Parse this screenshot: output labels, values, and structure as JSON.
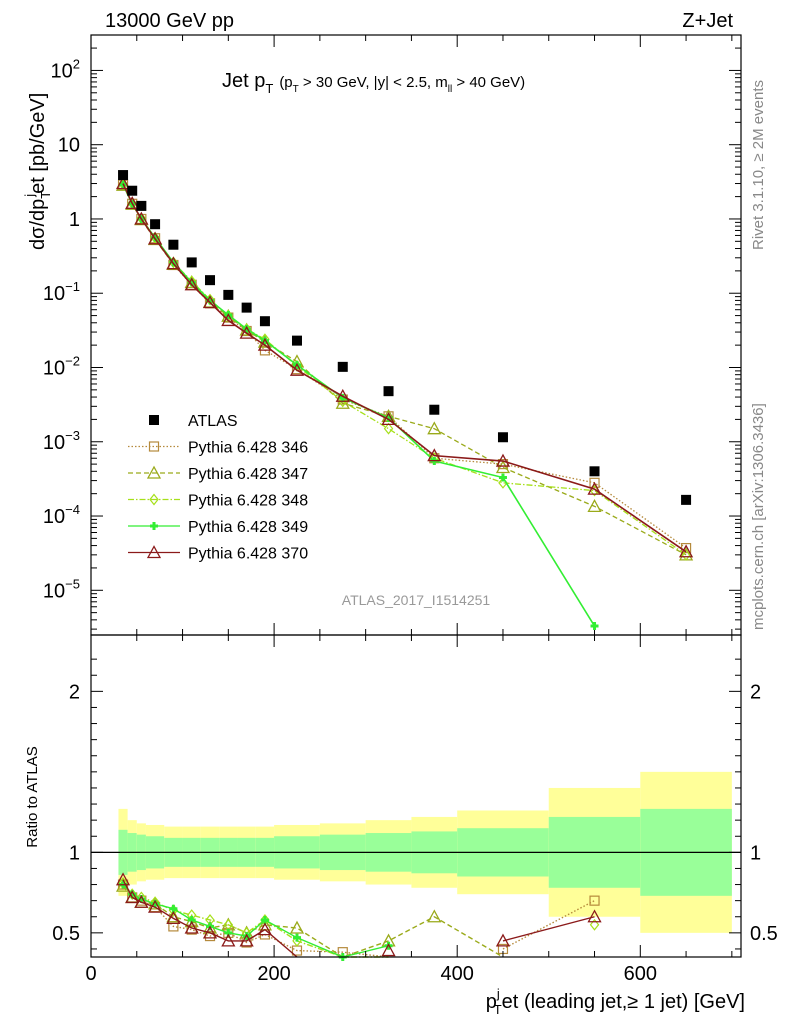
{
  "header": {
    "left": "13000 GeV pp",
    "right": "Z+Jet"
  },
  "side_labels": {
    "top": "Rivet 3.1.10, ≥ 2M events",
    "bottom": "mcplots.cern.ch [arXiv:1306.3436]"
  },
  "chart_data": [
    {
      "type": "scatter",
      "panel": "main",
      "title_main": "Jet p",
      "title_sub": "T",
      "title_cuts_a": "(p",
      "title_cuts_b": " > 30 GeV, |y| < 2.5, m",
      "title_cuts_sub2": "ll",
      "title_cuts_c": " > 40 GeV)",
      "ylabel": "dσ/dp",
      "ylabel_sub": "T",
      "ylabel_sup": "j",
      "ylabel_rest": "et [pb/GeV]",
      "watermark": "ATLAS_2017_I1514251",
      "y_scale": "log",
      "ylim": [
        2.5e-06,
        300
      ],
      "xlim": [
        0,
        710
      ],
      "y_ticks": [
        {
          "v": 1e-05,
          "m": "10",
          "e": "−5"
        },
        {
          "v": 0.0001,
          "m": "10",
          "e": "−4"
        },
        {
          "v": 0.001,
          "m": "10",
          "e": "−3"
        },
        {
          "v": 0.01,
          "m": "10",
          "e": "−2"
        },
        {
          "v": 0.1,
          "m": "10",
          "e": "−1"
        },
        {
          "v": 1,
          "m": "1",
          "e": ""
        },
        {
          "v": 10,
          "m": "10",
          "e": ""
        },
        {
          "v": 100,
          "m": "10",
          "e": "2"
        }
      ],
      "x": [
        35,
        45,
        55,
        70,
        90,
        110,
        130,
        150,
        170,
        190,
        225,
        275,
        325,
        375,
        450,
        550,
        650
      ],
      "series": [
        {
          "name": "ATLAS",
          "color": "#000000",
          "marker": "square-filled",
          "dash": "",
          "values": [
            3.9,
            2.4,
            1.5,
            0.85,
            0.45,
            0.26,
            0.15,
            0.095,
            0.064,
            0.042,
            0.023,
            0.0102,
            0.0048,
            0.0027,
            0.00115,
            0.0004,
            0.000165
          ]
        },
        {
          "name": "Pythia 6.428 346",
          "color": "#b58a3c",
          "marker": "square-open",
          "dash": "1.5,2",
          "values": [
            2.9,
            1.6,
            1.0,
            0.55,
            0.24,
            0.13,
            0.073,
            0.047,
            0.031,
            0.017,
            0.0095,
            0.0037,
            0.0022,
            0.0006,
            0.0005,
            0.00028,
            3.7e-05
          ]
        },
        {
          "name": "Pythia 6.428 347",
          "color": "#9aaa1a",
          "marker": "triangle-open",
          "dash": "5,3",
          "values": [
            2.85,
            1.58,
            0.98,
            0.53,
            0.245,
            0.14,
            0.076,
            0.049,
            0.032,
            0.022,
            0.012,
            0.0033,
            0.0022,
            0.0015,
            0.00045,
            0.000135,
            3e-05
          ]
        },
        {
          "name": "Pythia 6.428 348",
          "color": "#a6e01a",
          "marker": "diamond-open",
          "dash": "6,2,1.5,2",
          "values": [
            2.95,
            1.62,
            1.02,
            0.56,
            0.26,
            0.145,
            0.082,
            0.05,
            0.033,
            0.024,
            0.0105,
            0.0035,
            0.0015,
            0.0006,
            0.00028,
            0.00022,
            3e-05
          ]
        },
        {
          "name": "Pythia 6.428 349",
          "color": "#33ee33",
          "marker": "cross",
          "dash": "",
          "values": [
            2.9,
            1.6,
            1.0,
            0.56,
            0.26,
            0.14,
            0.08,
            0.051,
            0.033,
            0.023,
            0.0108,
            0.0039,
            0.0021,
            0.00055,
            0.00033,
            3.3e-06,
            null
          ]
        },
        {
          "name": "Pythia 6.428 370",
          "color": "#8b1a1a",
          "marker": "triangle-open",
          "dash": "",
          "values": [
            3.0,
            1.62,
            1.0,
            0.54,
            0.25,
            0.13,
            0.075,
            0.043,
            0.029,
            0.02,
            0.0092,
            0.0041,
            0.002,
            0.00065,
            0.00055,
            0.00023,
            3.3e-05
          ]
        }
      ]
    },
    {
      "type": "scatter",
      "panel": "ratio",
      "ylabel": "Ratio to ATLAS",
      "xlabel_a": "p",
      "xlabel_sup": "j",
      "xlabel_sub": "T",
      "xlabel_b": "et (leading jet,≥ 1 jet) [GeV]",
      "ylim": [
        0.35,
        2.35
      ],
      "xlim": [
        0,
        710
      ],
      "y_ticks": [
        0.5,
        1,
        2
      ],
      "x_ticks": [
        0,
        200,
        400,
        600
      ],
      "bands": {
        "bin_edges": [
          30,
          40,
          50,
          60,
          80,
          100,
          120,
          140,
          160,
          180,
          200,
          250,
          300,
          350,
          400,
          500,
          600,
          700
        ],
        "inner_up": [
          1.14,
          1.12,
          1.11,
          1.1,
          1.09,
          1.09,
          1.09,
          1.09,
          1.09,
          1.09,
          1.1,
          1.11,
          1.12,
          1.13,
          1.15,
          1.22,
          1.27
        ],
        "inner_dn": [
          0.86,
          0.88,
          0.89,
          0.9,
          0.91,
          0.91,
          0.91,
          0.91,
          0.91,
          0.91,
          0.9,
          0.89,
          0.88,
          0.87,
          0.85,
          0.78,
          0.73
        ],
        "outer_up": [
          1.27,
          1.2,
          1.18,
          1.17,
          1.16,
          1.16,
          1.16,
          1.16,
          1.16,
          1.16,
          1.17,
          1.18,
          1.2,
          1.22,
          1.26,
          1.4,
          1.5
        ],
        "outer_dn": [
          0.73,
          0.8,
          0.82,
          0.83,
          0.84,
          0.84,
          0.84,
          0.84,
          0.84,
          0.84,
          0.83,
          0.82,
          0.8,
          0.78,
          0.74,
          0.6,
          0.5
        ],
        "inner_color": "#99ff99",
        "outer_color": "#ffff99"
      },
      "series": [
        {
          "name": "Pythia 6.428 346",
          "values": [
            0.8,
            0.72,
            0.7,
            0.66,
            0.54,
            0.52,
            0.48,
            0.5,
            0.44,
            0.49,
            0.39,
            0.38,
            0.3,
            null,
            0.4,
            0.7,
            null
          ]
        },
        {
          "name": "Pythia 6.428 347",
          "values": [
            0.79,
            0.72,
            0.69,
            0.68,
            0.6,
            0.57,
            0.53,
            0.55,
            0.5,
            0.55,
            0.53,
            0.33,
            0.45,
            0.6,
            0.32,
            null,
            null
          ]
        },
        {
          "name": "Pythia 6.428 348",
          "values": [
            0.81,
            0.74,
            0.72,
            0.69,
            0.64,
            0.61,
            0.58,
            0.55,
            0.5,
            0.58,
            0.45,
            0.33,
            0.32,
            null,
            null,
            0.55,
            null
          ]
        },
        {
          "name": "Pythia 6.428 349",
          "values": [
            0.8,
            0.74,
            0.71,
            0.68,
            0.65,
            0.58,
            0.54,
            0.5,
            0.48,
            0.58,
            0.47,
            0.35,
            0.42,
            null,
            null,
            null,
            null
          ]
        },
        {
          "name": "Pythia 6.428 370",
          "values": [
            0.83,
            0.72,
            0.69,
            0.66,
            0.59,
            0.53,
            0.5,
            0.45,
            0.45,
            0.52,
            0.33,
            null,
            0.39,
            null,
            0.45,
            0.6,
            null
          ]
        }
      ]
    }
  ]
}
